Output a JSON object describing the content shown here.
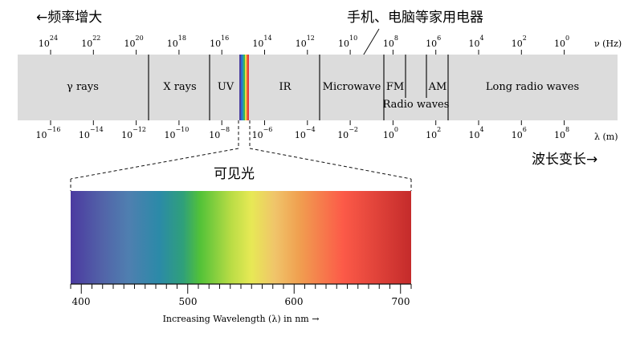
{
  "header": {
    "freq_increase": "←频率增大",
    "devices": "手机、电脑等家用电器",
    "wavelength_increase": "波长变长→",
    "visible_light": "可见光"
  },
  "frequency_axis": {
    "unit": "ν (Hz)",
    "ticks": [
      {
        "base": "10",
        "exp": "24"
      },
      {
        "base": "10",
        "exp": "22"
      },
      {
        "base": "10",
        "exp": "20"
      },
      {
        "base": "10",
        "exp": "18"
      },
      {
        "base": "10",
        "exp": "16"
      },
      {
        "base": "10",
        "exp": "14"
      },
      {
        "base": "10",
        "exp": "12"
      },
      {
        "base": "10",
        "exp": "10"
      },
      {
        "base": "10",
        "exp": "8"
      },
      {
        "base": "10",
        "exp": "6"
      },
      {
        "base": "10",
        "exp": "4"
      },
      {
        "base": "10",
        "exp": "2"
      },
      {
        "base": "10",
        "exp": "0"
      }
    ]
  },
  "wavelength_axis": {
    "unit": "λ (m)",
    "ticks": [
      {
        "base": "10",
        "exp": "−16"
      },
      {
        "base": "10",
        "exp": "−14"
      },
      {
        "base": "10",
        "exp": "−12"
      },
      {
        "base": "10",
        "exp": "−10"
      },
      {
        "base": "10",
        "exp": "−8"
      },
      {
        "base": "10",
        "exp": "−6"
      },
      {
        "base": "10",
        "exp": "−4"
      },
      {
        "base": "10",
        "exp": "−2"
      },
      {
        "base": "10",
        "exp": "0"
      },
      {
        "base": "10",
        "exp": "2"
      },
      {
        "base": "10",
        "exp": "4"
      },
      {
        "base": "10",
        "exp": "6"
      },
      {
        "base": "10",
        "exp": "8"
      }
    ]
  },
  "regions": [
    {
      "id": "gamma",
      "label": "γ rays"
    },
    {
      "id": "xray",
      "label": "X rays"
    },
    {
      "id": "uv",
      "label": "UV"
    },
    {
      "id": "ir",
      "label": "IR"
    },
    {
      "id": "microwave",
      "label": "Microwave"
    },
    {
      "id": "fm",
      "label": "FM"
    },
    {
      "id": "am",
      "label": "AM"
    },
    {
      "id": "long",
      "label": "Long radio waves"
    },
    {
      "id": "radio",
      "label": "Radio waves"
    }
  ],
  "visible_spectrum": {
    "ticks": [
      "400",
      "500",
      "600",
      "700"
    ],
    "caption": "Increasing Wavelength (λ) in nm →"
  },
  "colors": {
    "band": "#dcdcdc",
    "divider": "#222222",
    "visible_stripes": [
      "#4a3fa0",
      "#2b6fd0",
      "#2aa0a8",
      "#3bb54a",
      "#e8e84a",
      "#f28a3a",
      "#e83a3a"
    ],
    "spectrum_stops": [
      "#4b3aa0",
      "#4f7fb0",
      "#2b8aa8",
      "#52c238",
      "#e7e955",
      "#f0a050",
      "#fc5a48",
      "#c42b2b"
    ]
  }
}
